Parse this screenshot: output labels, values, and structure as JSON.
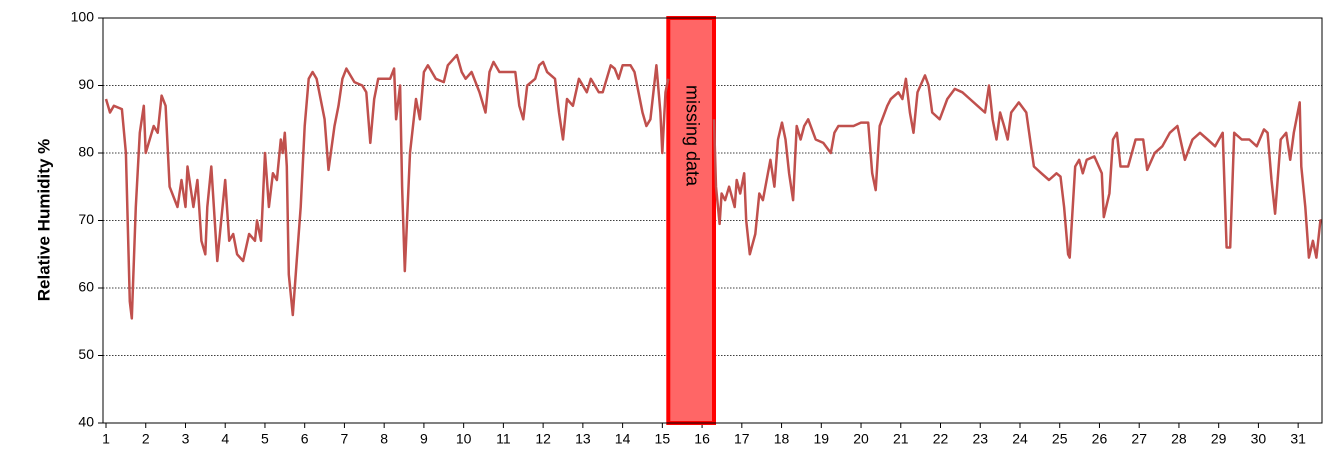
{
  "chart_data": {
    "type": "line",
    "y_label": "Relative Humidity %",
    "annotation": "missing data",
    "missing_span": [
      15.15,
      16.3
    ],
    "missing_color": "#ff6666",
    "missing_border": "#ff0000",
    "grid": true,
    "xlim": [
      1,
      31.6
    ],
    "ylim": [
      40,
      100
    ],
    "xticks": [
      1,
      2,
      3,
      4,
      5,
      6,
      7,
      8,
      9,
      10,
      11,
      12,
      13,
      14,
      15,
      16,
      17,
      18,
      19,
      20,
      21,
      22,
      23,
      24,
      25,
      26,
      27,
      28,
      29,
      30,
      31
    ],
    "yticks": [
      40,
      50,
      60,
      70,
      80,
      90,
      100
    ],
    "series": [
      {
        "name": "Relative Humidity",
        "color": "#c0504d",
        "x": [
          1.0,
          1.1,
          1.2,
          1.4,
          1.5,
          1.6,
          1.65,
          1.75,
          1.85,
          1.95,
          2.0,
          2.2,
          2.3,
          2.4,
          2.5,
          2.6,
          2.8,
          2.9,
          3.0,
          3.05,
          3.2,
          3.3,
          3.4,
          3.5,
          3.55,
          3.65,
          3.8,
          3.9,
          4.0,
          4.1,
          4.2,
          4.3,
          4.45,
          4.6,
          4.75,
          4.8,
          4.9,
          5.0,
          5.1,
          5.2,
          5.3,
          5.4,
          5.45,
          5.5,
          5.55,
          5.6,
          5.7,
          5.8,
          5.9,
          6.0,
          6.1,
          6.2,
          6.3,
          6.4,
          6.5,
          6.6,
          6.75,
          6.85,
          6.95,
          7.05,
          7.25,
          7.45,
          7.55,
          7.65,
          7.75,
          7.85,
          7.95,
          8.15,
          8.25,
          8.3,
          8.4,
          8.45,
          8.52,
          8.65,
          8.8,
          8.9,
          9.0,
          9.1,
          9.3,
          9.5,
          9.6,
          9.83,
          9.95,
          10.05,
          10.2,
          10.4,
          10.55,
          10.65,
          10.75,
          10.9,
          11.1,
          11.3,
          11.4,
          11.5,
          11.6,
          11.8,
          11.9,
          12.0,
          12.1,
          12.3,
          12.4,
          12.5,
          12.6,
          12.75,
          12.9,
          13.1,
          13.2,
          13.4,
          13.5,
          13.7,
          13.8,
          13.9,
          14.0,
          14.2,
          14.3,
          14.5,
          14.6,
          14.7,
          14.85,
          14.95,
          15.0,
          15.08,
          15.15,
          15.7,
          16.3,
          16.35,
          16.44,
          16.49,
          16.58,
          16.68,
          16.82,
          16.87,
          16.96,
          17.06,
          17.11,
          17.2,
          17.34,
          17.44,
          17.53,
          17.72,
          17.82,
          17.91,
          18.01,
          18.1,
          18.19,
          18.29,
          18.38,
          18.48,
          18.57,
          18.67,
          18.86,
          19.05,
          19.24,
          19.33,
          19.43,
          19.62,
          19.81,
          20.0,
          20.18,
          20.28,
          20.37,
          20.47,
          20.66,
          20.75,
          20.94,
          21.04,
          21.13,
          21.23,
          21.32,
          21.42,
          21.61,
          21.7,
          21.79,
          21.98,
          22.17,
          22.36,
          22.55,
          22.74,
          22.93,
          23.12,
          23.22,
          23.31,
          23.41,
          23.5,
          23.6,
          23.69,
          23.78,
          23.97,
          24.16,
          24.35,
          24.54,
          24.73,
          24.92,
          25.02,
          25.11,
          25.21,
          25.25,
          25.39,
          25.49,
          25.58,
          25.68,
          25.87,
          26.06,
          26.11,
          26.25,
          26.34,
          26.44,
          26.53,
          26.72,
          26.91,
          27.1,
          27.2,
          27.39,
          27.58,
          27.77,
          27.96,
          28.15,
          28.34,
          28.53,
          28.72,
          28.91,
          29.1,
          29.2,
          29.29,
          29.39,
          29.58,
          29.77,
          29.96,
          30.14,
          30.23,
          30.33,
          30.42,
          30.56,
          30.7,
          30.8,
          30.89,
          31.04,
          31.08,
          31.18,
          31.27,
          31.37,
          31.46,
          31.56,
          31.6
        ],
        "values": [
          88,
          86,
          87,
          86.5,
          80,
          58,
          55.5,
          72,
          83,
          87,
          80,
          84,
          83,
          88.5,
          87,
          75,
          72,
          76,
          72,
          78,
          72,
          76,
          67,
          65,
          72,
          78,
          64,
          70,
          76,
          67,
          68,
          65,
          64,
          68,
          67,
          70,
          67,
          80,
          72,
          77,
          76,
          82,
          80,
          83,
          78,
          62,
          56,
          64,
          72,
          84,
          91,
          92,
          91,
          88,
          85,
          77.5,
          84,
          87,
          91,
          92.5,
          90.5,
          90,
          89,
          81.5,
          88,
          91,
          91,
          91,
          92.5,
          85,
          90,
          75,
          62.5,
          80,
          88,
          85,
          92,
          93,
          91,
          90.5,
          93,
          94.5,
          92,
          91,
          92,
          89,
          86,
          92,
          93.5,
          92,
          92,
          92,
          87,
          85,
          90,
          91,
          93,
          93.5,
          92,
          91,
          86,
          82,
          88,
          87,
          91,
          89,
          91,
          89,
          89,
          93,
          92.5,
          91,
          93,
          93,
          92,
          86,
          84,
          85,
          93,
          86,
          80,
          89,
          91,
          null,
          85,
          75,
          69.5,
          74,
          73,
          75,
          72,
          76,
          74,
          77,
          70,
          65,
          68,
          74,
          73,
          79,
          75,
          82,
          84.5,
          82,
          77,
          73,
          84,
          82,
          84,
          85,
          82,
          81.5,
          80,
          83,
          84,
          84,
          84,
          84.5,
          84.5,
          77,
          74.5,
          84,
          87,
          88,
          89,
          88,
          91,
          86,
          83,
          89,
          91.5,
          90,
          86,
          85,
          88,
          89.5,
          89,
          88,
          87,
          86,
          90,
          85,
          82,
          86,
          84,
          82,
          86,
          87.5,
          86,
          78,
          77,
          76,
          77,
          76.5,
          72,
          65,
          64.5,
          78,
          79,
          77,
          79,
          79.5,
          77,
          70.5,
          74,
          82,
          83,
          78,
          78,
          82,
          82,
          77.5,
          80,
          81,
          83,
          84,
          79,
          82,
          83,
          82,
          81,
          83,
          66,
          66,
          83,
          82,
          82,
          81,
          83.5,
          83,
          76,
          71,
          82,
          83,
          79,
          83,
          87.5,
          78,
          72,
          64.5,
          67,
          64.5,
          70,
          70
        ]
      }
    ]
  }
}
